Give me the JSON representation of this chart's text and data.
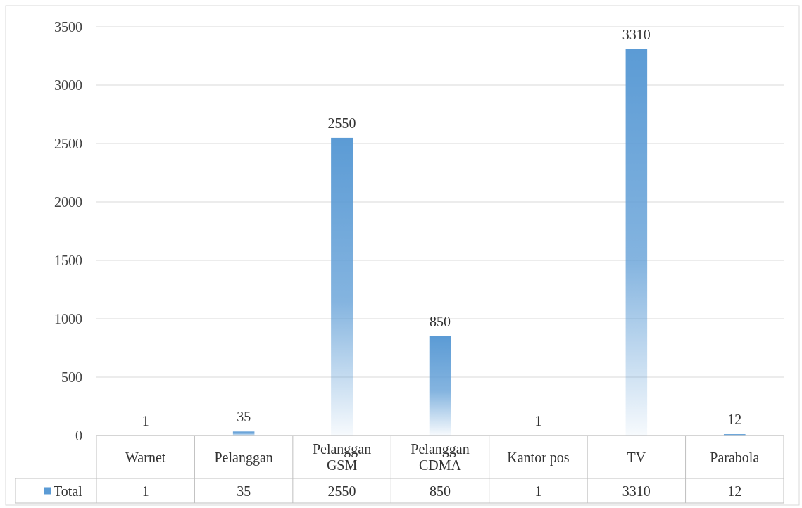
{
  "chart_data": {
    "type": "bar",
    "categories": [
      "Warnet",
      "Pelanggan",
      "Pelanggan GSM",
      "Pelanggan CDMA",
      "Kantor pos",
      "TV",
      "Parabola"
    ],
    "series": [
      {
        "name": "Total",
        "color": "#5b9bd5",
        "values": [
          1,
          35,
          2550,
          850,
          1,
          3310,
          12
        ]
      }
    ],
    "ylim": [
      0,
      3500
    ],
    "yticks": [
      0,
      500,
      1000,
      1500,
      2000,
      2500,
      3000,
      3500
    ],
    "grid": "y",
    "legend": "bottom left",
    "data_labels": true,
    "annotations": [
      "1",
      "35",
      "2550",
      "850",
      "1",
      "3310",
      "12"
    ]
  }
}
